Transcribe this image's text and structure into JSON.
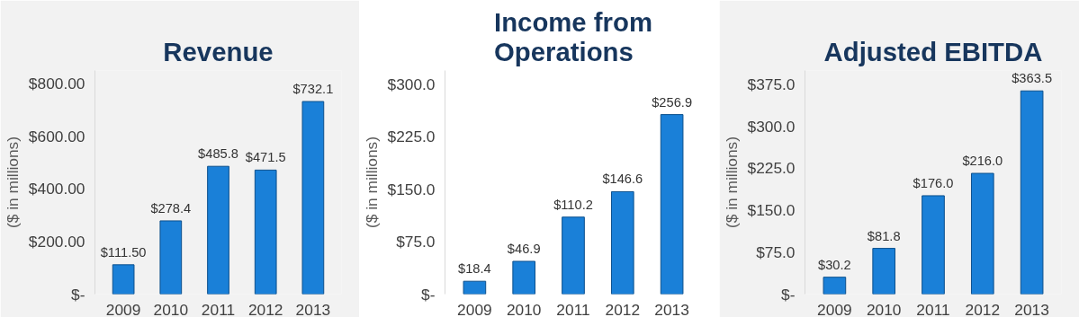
{
  "chart_data": [
    {
      "type": "bar",
      "title": "Revenue",
      "ylabel": "($ in millions)",
      "categories": [
        "2009",
        "2010",
        "2011",
        "2012",
        "2013"
      ],
      "values": [
        111.5,
        278.4,
        485.8,
        471.5,
        732.1
      ],
      "value_labels": [
        "$111.50",
        "$278.4",
        "$485.8",
        "$471.5",
        "$732.1"
      ],
      "color": "#1a80d8",
      "ylim": [
        0,
        850
      ],
      "yticks": [
        {
          "value": 0,
          "label": "$-"
        },
        {
          "value": 200,
          "label": "$200.00"
        },
        {
          "value": 400,
          "label": "$400.00"
        },
        {
          "value": 600,
          "label": "$600.00"
        },
        {
          "value": 800,
          "label": "$800.00"
        }
      ],
      "grid": false
    },
    {
      "type": "bar",
      "title": "Income from Operations",
      "ylabel": "($ in millions)",
      "categories": [
        "2009",
        "2010",
        "2011",
        "2012",
        "2013"
      ],
      "values": [
        18.4,
        46.9,
        110.2,
        146.6,
        256.9
      ],
      "value_labels": [
        "$18.4",
        "$46.9",
        "$110.2",
        "$146.6",
        "$256.9"
      ],
      "color": "#1a80d8",
      "ylim": [
        0,
        320
      ],
      "yticks": [
        {
          "value": 0,
          "label": "$-"
        },
        {
          "value": 75,
          "label": "$75.0"
        },
        {
          "value": 150,
          "label": "$150.0"
        },
        {
          "value": 225,
          "label": "$225.0"
        },
        {
          "value": 300,
          "label": "$300.0"
        }
      ],
      "grid": false
    },
    {
      "type": "bar",
      "title": "Adjusted EBITDA",
      "ylabel": "($ in millions)",
      "categories": [
        "2009",
        "2010",
        "2011",
        "2012",
        "2013"
      ],
      "values": [
        30.2,
        81.8,
        176.0,
        216.0,
        363.5
      ],
      "value_labels": [
        "$30.2",
        "$81.8",
        "$176.0",
        "$216.0",
        "$363.5"
      ],
      "color": "#1a80d8",
      "ylim": [
        0,
        400
      ],
      "yticks": [
        {
          "value": 0,
          "label": "$-"
        },
        {
          "value": 75,
          "label": "$75.0"
        },
        {
          "value": 150,
          "label": "$150.0"
        },
        {
          "value": 225,
          "label": "$225.0"
        },
        {
          "value": 300,
          "label": "$300.0"
        },
        {
          "value": 375,
          "label": "$375.0"
        }
      ],
      "grid": false
    }
  ]
}
